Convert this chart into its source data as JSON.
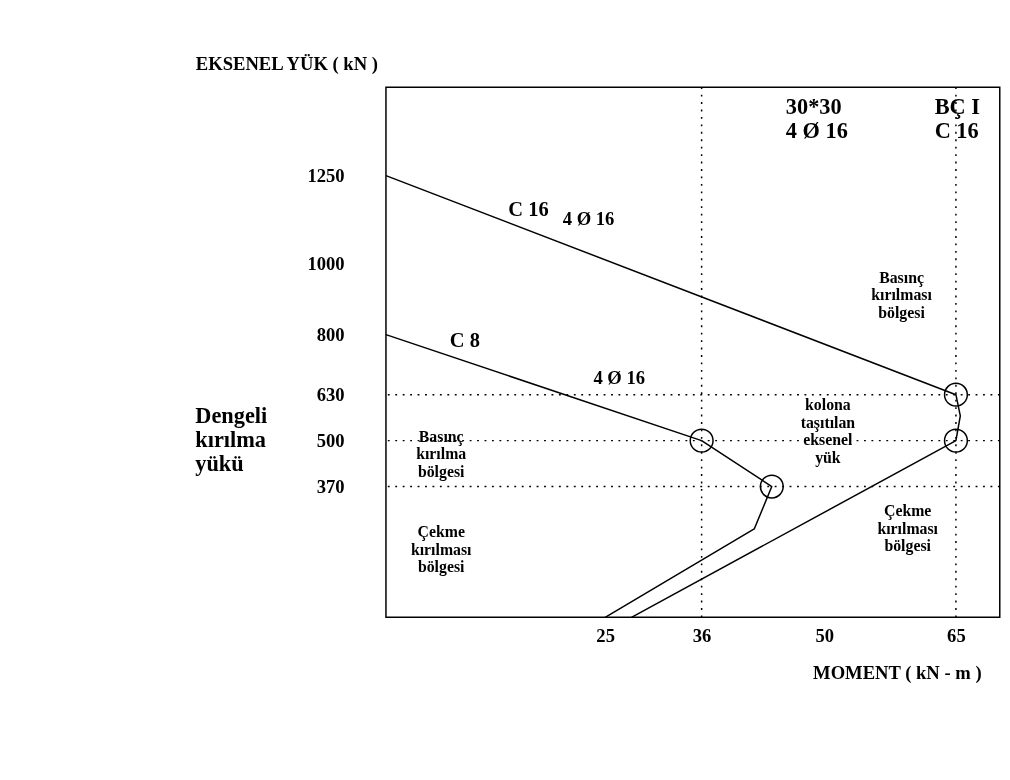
{
  "chart_data": {
    "type": "line",
    "xlabel": "MOMENT ( kN - m )",
    "ylabel": "EKSENEL YÜK ( kN )",
    "xlim": [
      0,
      70
    ],
    "ylim": [
      0,
      1500
    ],
    "xticks": [
      25,
      36,
      50,
      65
    ],
    "yticks": [
      370,
      500,
      630,
      800,
      1000,
      1250
    ],
    "grid": false,
    "marker": "none",
    "line_style": "solid",
    "series": [
      {
        "name": "C 16",
        "color": "#000000",
        "x": [
          0,
          65,
          65.5,
          65,
          28
        ],
        "values": [
          1250,
          630,
          570,
          500,
          0
        ]
      },
      {
        "name": "C 8",
        "color": "#000000",
        "x": [
          0,
          36,
          44,
          42,
          25
        ],
        "values": [
          800,
          500,
          370,
          250,
          0
        ]
      },
      {
        "type": "scatter",
        "marker": "circle",
        "color": "#000000",
        "x": [
          65,
          65,
          36,
          44
        ],
        "values": [
          630,
          500,
          500,
          370
        ]
      }
    ],
    "ref_lines": [
      {
        "axis": "y",
        "value": 630,
        "line_style": "dotted",
        "color": "#000000"
      },
      {
        "axis": "y",
        "value": 500,
        "line_style": "dotted",
        "color": "#000000"
      },
      {
        "axis": "y",
        "value": 370,
        "line_style": "dotted",
        "color": "#000000"
      },
      {
        "axis": "x",
        "value": 36,
        "line_style": "dotted",
        "color": "#000000"
      },
      {
        "axis": "x",
        "value": 65,
        "line_style": "dotted",
        "color": "#000000"
      }
    ],
    "annotations": [
      "4 Ø 16",
      "4 Ø 16",
      "Basınç\nkırılması\nbölgesi",
      "kolona\ntaşıtılan\neksenel\nyük",
      "Çekme\nkırılması\nbölgesi",
      "Basınç\nkırılma\nbölgesi",
      "Çekme\nkırılması\nbölgesi",
      "Dengeli\nkırılma\nyükü",
      "30*30\n4 Ø 16",
      "BÇ I\nC 16"
    ]
  }
}
